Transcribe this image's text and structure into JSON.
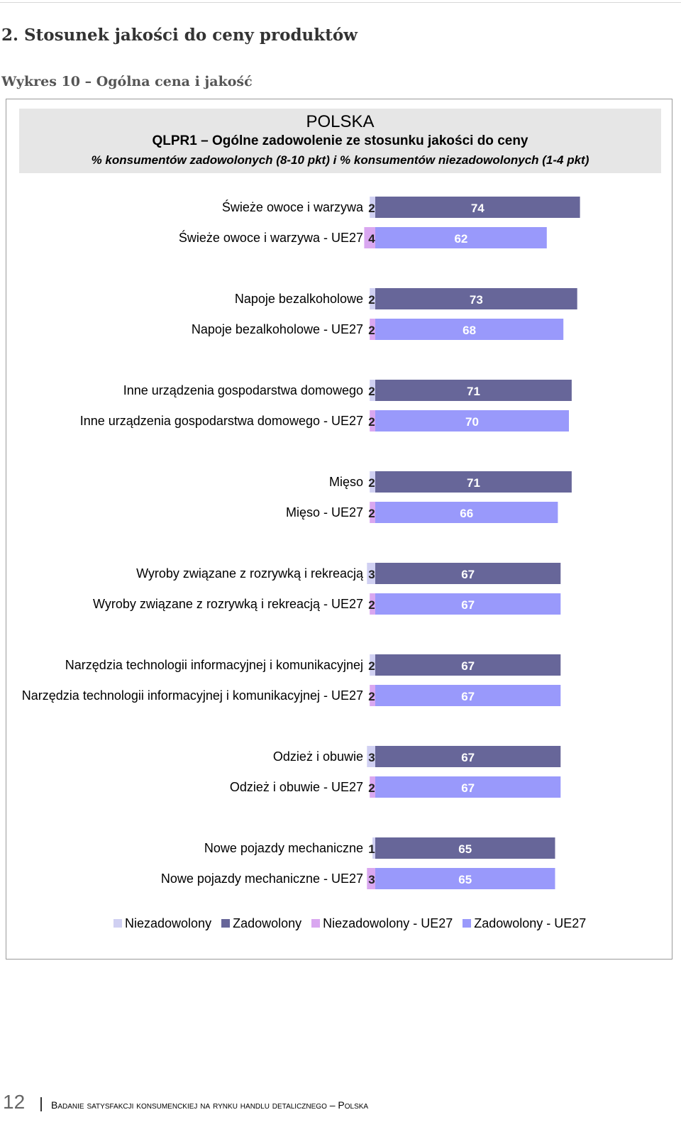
{
  "page": {
    "section_title": "2. Stosunek jakości do ceny produktów",
    "chart_caption": "Wykres 10 – Ogólna cena i jakość",
    "footer_page_number": "12",
    "footer_text": "Badanie satysfakcji konsumenckiej na rynku handlu detalicznego – Polska"
  },
  "colors": {
    "niezadowolony": "#d0d0f2",
    "zadowolony": "#676699",
    "niezadowolony_ue27": "#d9a7f0",
    "zadowolony_ue27": "#9999fb"
  },
  "chart_data": {
    "type": "bar",
    "orientation": "horizontal-stacked",
    "title": "POLSKA",
    "subtitle": "QLPR1 – Ogólne zadowolenie ze stosunku jakości do ceny",
    "subtitle2": "% konsumentów zadowolonych (8-10 pkt) i % konsumentów niezadowolonych (1-4 pkt)",
    "xlim": [
      0,
      100
    ],
    "grid": false,
    "legend_position": "bottom",
    "legend": [
      "Niezadowolony",
      "Zadowolony",
      "Niezadowolony - UE27",
      "Zadowolony - UE27"
    ],
    "rows": [
      {
        "label": "Świeże owoce i warzywa",
        "type": "pl",
        "niezadowolony": 2,
        "zadowolony": 74
      },
      {
        "label": "Świeże owoce i warzywa - UE27",
        "type": "ue",
        "niezadowolony": 4,
        "zadowolony": 62
      },
      {
        "label": "Napoje bezalkoholowe",
        "type": "pl",
        "niezadowolony": 2,
        "zadowolony": 73
      },
      {
        "label": "Napoje bezalkoholowe - UE27",
        "type": "ue",
        "niezadowolony": 2,
        "zadowolony": 68
      },
      {
        "label": "Inne urządzenia gospodarstwa domowego",
        "type": "pl",
        "niezadowolony": 2,
        "zadowolony": 71
      },
      {
        "label": "Inne urządzenia gospodarstwa domowego - UE27",
        "type": "ue",
        "niezadowolony": 2,
        "zadowolony": 70
      },
      {
        "label": "Mięso",
        "type": "pl",
        "niezadowolony": 2,
        "zadowolony": 71
      },
      {
        "label": "Mięso - UE27",
        "type": "ue",
        "niezadowolony": 2,
        "zadowolony": 66
      },
      {
        "label": "Wyroby związane z rozrywką i rekreacją",
        "type": "pl",
        "niezadowolony": 3,
        "zadowolony": 67
      },
      {
        "label": "Wyroby związane z rozrywką i rekreacją - UE27",
        "type": "ue",
        "niezadowolony": 2,
        "zadowolony": 67
      },
      {
        "label": "Narzędzia technologii informacyjnej i komunikacyjnej",
        "type": "pl",
        "niezadowolony": 2,
        "zadowolony": 67
      },
      {
        "label": "Narzędzia technologii informacyjnej i komunikacyjnej - UE27",
        "type": "ue",
        "niezadowolony": 2,
        "zadowolony": 67
      },
      {
        "label": "Odzież i obuwie",
        "type": "pl",
        "niezadowolony": 3,
        "zadowolony": 67
      },
      {
        "label": "Odzież i obuwie - UE27",
        "type": "ue",
        "niezadowolony": 2,
        "zadowolony": 67
      },
      {
        "label": "Nowe pojazdy mechaniczne",
        "type": "pl",
        "niezadowolony": 1,
        "zadowolony": 65
      },
      {
        "label": "Nowe pojazdy mechaniczne - UE27",
        "type": "ue",
        "niezadowolony": 3,
        "zadowolony": 65
      }
    ]
  }
}
